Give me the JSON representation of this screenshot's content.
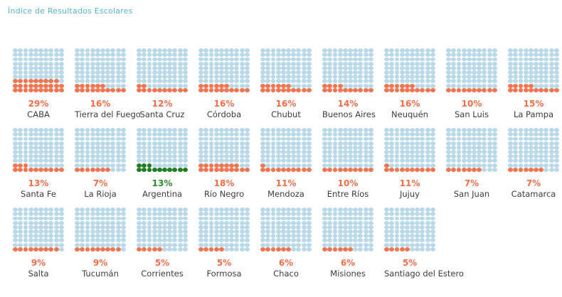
{
  "title": "Índice de Resultados Escolares",
  "colors": {
    "title": "#58b5c4",
    "dot_empty": "#b9d9e8",
    "dot_filled": "#ef7450",
    "dot_highlight": "#1f7c1f",
    "pct_filled": "#ed6e49",
    "pct_highlight": "#2e8b2e",
    "province_label": "#3c3c3c",
    "background": "#ffffff"
  },
  "chart_data": {
    "type": "heatmap",
    "subtype": "waffle-grid",
    "title": "Índice de Resultados Escolares",
    "unit": "percent",
    "waffle": {
      "rows": 10,
      "cols": 10,
      "dots_total": 100,
      "fill_origin": "bottom-left",
      "fill_direction": "left-to-right, bottom-to-top"
    },
    "columns_per_row": 9,
    "legend": "none",
    "items": [
      {
        "name": "CABA",
        "value": 29,
        "label": "29%",
        "highlight": false
      },
      {
        "name": "Tierra del Fuego",
        "value": 16,
        "label": "16%",
        "highlight": false
      },
      {
        "name": "Santa Cruz",
        "value": 12,
        "label": "12%",
        "highlight": false
      },
      {
        "name": "Córdoba",
        "value": 16,
        "label": "16%",
        "highlight": false
      },
      {
        "name": "Chubut",
        "value": 16,
        "label": "16%",
        "highlight": false
      },
      {
        "name": "Buenos Aires",
        "value": 14,
        "label": "14%",
        "highlight": false
      },
      {
        "name": "Neuquén",
        "value": 16,
        "label": "16%",
        "highlight": false
      },
      {
        "name": "San Luis",
        "value": 10,
        "label": "10%",
        "highlight": false
      },
      {
        "name": "La Pampa",
        "value": 15,
        "label": "15%",
        "highlight": false
      },
      {
        "name": "Santa Fe",
        "value": 13,
        "label": "13%",
        "highlight": false
      },
      {
        "name": "La Rioja",
        "value": 7,
        "label": "7%",
        "highlight": false
      },
      {
        "name": "Argentina",
        "value": 13,
        "label": "13%",
        "highlight": true
      },
      {
        "name": "Río Negro",
        "value": 18,
        "label": "18%",
        "highlight": false
      },
      {
        "name": "Mendoza",
        "value": 11,
        "label": "11%",
        "highlight": false
      },
      {
        "name": "Entre Ríos",
        "value": 10,
        "label": "10%",
        "highlight": false
      },
      {
        "name": "Jujuy",
        "value": 11,
        "label": "11%",
        "highlight": false
      },
      {
        "name": "San Juan",
        "value": 7,
        "label": "7%",
        "highlight": false
      },
      {
        "name": "Catamarca",
        "value": 7,
        "label": "7%",
        "highlight": false
      },
      {
        "name": "Salta",
        "value": 9,
        "label": "9%",
        "highlight": false
      },
      {
        "name": "Tucumán",
        "value": 9,
        "label": "9%",
        "highlight": false
      },
      {
        "name": "Corrientes",
        "value": 5,
        "label": "5%",
        "highlight": false
      },
      {
        "name": "Formosa",
        "value": 5,
        "label": "5%",
        "highlight": false
      },
      {
        "name": "Chaco",
        "value": 6,
        "label": "6%",
        "highlight": false
      },
      {
        "name": "Misiones",
        "value": 6,
        "label": "6%",
        "highlight": false
      },
      {
        "name": "Santiago del Estero",
        "value": 5,
        "label": "5%",
        "highlight": false
      }
    ]
  }
}
